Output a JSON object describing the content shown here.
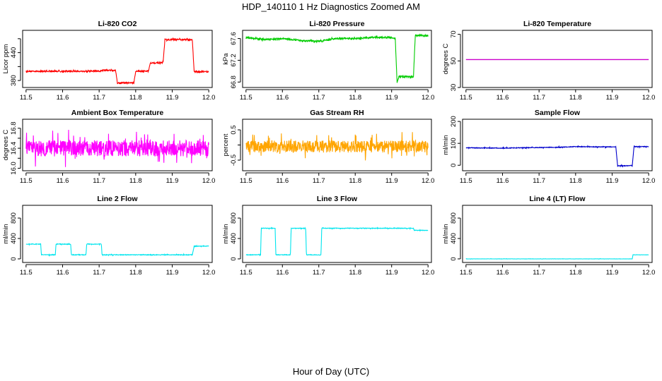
{
  "figure": {
    "title": "HDP_140110  1 Hz Diagnostics Zoomed AM",
    "xlabel": "Hour of Day (UTC)"
  },
  "chart_data": [
    {
      "id": "co2",
      "type": "line",
      "title": "Li-820 CO2",
      "ylabel": "Licor ppm",
      "color": "#ff0000",
      "xlim": [
        11.5,
        12.0
      ],
      "ylim": [
        365,
        488
      ],
      "xticks": [
        "11.5",
        "11.6",
        "11.7",
        "11.8",
        "11.9",
        "12.0"
      ],
      "yticks": [
        380,
        410,
        440,
        470
      ],
      "ytick_labels": [
        "380",
        "",
        "440",
        ""
      ],
      "series": [
        {
          "x": [
            11.5,
            11.705,
            11.71,
            11.745,
            11.75,
            11.795,
            11.8,
            11.835,
            11.84,
            11.875,
            11.88,
            11.955,
            11.96,
            12.0
          ],
          "y": [
            400,
            400,
            402,
            402,
            375,
            375,
            400,
            400,
            418,
            418,
            468,
            468,
            399,
            399
          ],
          "noise": 1.5
        }
      ]
    },
    {
      "id": "pressure",
      "type": "line",
      "title": "Li-820 Pressure",
      "ylabel": "kPa",
      "color": "#00cc00",
      "xlim": [
        11.5,
        12.0
      ],
      "ylim": [
        66.7,
        67.75
      ],
      "xticks": [
        "11.5",
        "11.6",
        "11.7",
        "11.8",
        "11.9",
        "12.0"
      ],
      "yticks": [
        66.8,
        67.2,
        67.6
      ],
      "ytick_labels": [
        "66.8",
        "67.2",
        "67.6"
      ],
      "series": [
        {
          "x": [
            11.5,
            11.55,
            11.6,
            11.65,
            11.7,
            11.75,
            11.8,
            11.85,
            11.9,
            11.91,
            11.915,
            11.92,
            11.96,
            11.965,
            12.0
          ],
          "y": [
            67.62,
            67.58,
            67.6,
            67.56,
            67.55,
            67.6,
            67.6,
            67.62,
            67.62,
            67.6,
            66.78,
            66.9,
            66.9,
            67.66,
            67.65
          ],
          "noise": 0.015
        }
      ]
    },
    {
      "id": "licor_temp",
      "type": "line",
      "title": "Li-820 Temperature",
      "ylabel": "degrees C",
      "color": "#cc00cc",
      "xlim": [
        11.5,
        12.0
      ],
      "ylim": [
        30,
        73
      ],
      "xticks": [
        "11.5",
        "11.6",
        "11.7",
        "11.8",
        "11.9",
        "12.0"
      ],
      "yticks": [
        30,
        50,
        70
      ],
      "ytick_labels": [
        "30",
        "50",
        "70"
      ],
      "series": [
        {
          "x": [
            11.5,
            12.0
          ],
          "y": [
            51,
            51
          ],
          "noise": 0
        }
      ]
    },
    {
      "id": "box_temp",
      "type": "line",
      "title": "Ambient Box Temperature",
      "ylabel": "degrees C",
      "color": "#ff00ff",
      "xlim": [
        11.5,
        12.0
      ],
      "ylim": [
        15.95,
        16.98
      ],
      "xticks": [
        "11.5",
        "11.6",
        "11.7",
        "11.8",
        "11.9",
        "12.0"
      ],
      "yticks": [
        16.0,
        16.2,
        16.4,
        16.6,
        16.8
      ],
      "ytick_labels": [
        "16.0",
        "",
        "16.4",
        "",
        "16.8"
      ],
      "series": [
        {
          "x": [
            11.5,
            12.0
          ],
          "y": [
            16.4,
            16.4
          ],
          "noise": 0.16
        }
      ]
    },
    {
      "id": "rh",
      "type": "line",
      "title": "Gas Stream RH",
      "ylabel": "percent",
      "color": "#ffa500",
      "xlim": [
        11.5,
        12.0
      ],
      "ylim": [
        -0.85,
        0.85
      ],
      "xticks": [
        "11.5",
        "11.6",
        "11.7",
        "11.8",
        "11.9",
        "12.0"
      ],
      "yticks": [
        -0.5,
        0.0,
        0.5
      ],
      "ytick_labels": [
        "-0.5",
        "",
        "0.5"
      ],
      "series": [
        {
          "x": [
            11.5,
            12.0
          ],
          "y": [
            -0.05,
            -0.05
          ],
          "noise": 0.2
        }
      ]
    },
    {
      "id": "sample_flow",
      "type": "line",
      "title": "Sample Flow",
      "ylabel": "ml/min",
      "color": "#0000cc",
      "xlim": [
        11.5,
        12.0
      ],
      "ylim": [
        -25,
        210
      ],
      "xticks": [
        "11.5",
        "11.6",
        "11.7",
        "11.8",
        "11.9",
        "12.0"
      ],
      "yticks": [
        0,
        100,
        200
      ],
      "ytick_labels": [
        "0",
        "100",
        "200"
      ],
      "series": [
        {
          "x": [
            11.5,
            11.6,
            11.65,
            11.75,
            11.8,
            11.85,
            11.91,
            11.915,
            11.955,
            11.96,
            12.0
          ],
          "y": [
            80,
            78,
            80,
            82,
            85,
            84,
            84,
            -2,
            -2,
            85,
            85
          ],
          "noise": 1.5
        }
      ]
    },
    {
      "id": "line2",
      "type": "line",
      "title": "Line 2 Flow",
      "ylabel": "ml/min",
      "color": "#00e5ee",
      "xlim": [
        11.5,
        12.0
      ],
      "ylim": [
        -70,
        1050
      ],
      "xticks": [
        "11.5",
        "11.6",
        "11.7",
        "11.8",
        "11.9",
        "12.0"
      ],
      "yticks": [
        0,
        400,
        800
      ],
      "ytick_labels": [
        "0",
        "400",
        "800"
      ],
      "series": [
        {
          "x": [
            11.5,
            11.54,
            11.542,
            11.58,
            11.582,
            11.622,
            11.624,
            11.664,
            11.666,
            11.706,
            11.708,
            11.955,
            11.96,
            12.0
          ],
          "y": [
            290,
            290,
            80,
            80,
            290,
            290,
            80,
            80,
            290,
            290,
            80,
            80,
            250,
            250
          ],
          "noise": 6
        }
      ]
    },
    {
      "id": "line3",
      "type": "line",
      "title": "Line 3 Flow",
      "ylabel": "ml/min",
      "color": "#00e5ee",
      "xlim": [
        11.5,
        12.0
      ],
      "ylim": [
        -70,
        1050
      ],
      "xticks": [
        "11.5",
        "11.6",
        "11.7",
        "11.8",
        "11.9",
        "12.0"
      ],
      "yticks": [
        0,
        400,
        800
      ],
      "ytick_labels": [
        "0",
        "400",
        "800"
      ],
      "series": [
        {
          "x": [
            11.5,
            11.54,
            11.542,
            11.58,
            11.582,
            11.622,
            11.624,
            11.664,
            11.666,
            11.706,
            11.708,
            11.96,
            11.962,
            12.0
          ],
          "y": [
            80,
            80,
            600,
            600,
            80,
            80,
            600,
            600,
            80,
            80,
            600,
            600,
            560,
            560
          ],
          "noise": 6
        }
      ]
    },
    {
      "id": "line4",
      "type": "line",
      "title": "Line 4 (LT) Flow",
      "ylabel": "ml/min",
      "color": "#00e5ee",
      "xlim": [
        11.5,
        12.0
      ],
      "ylim": [
        -70,
        1050
      ],
      "xticks": [
        "11.5",
        "11.6",
        "11.7",
        "11.8",
        "11.9",
        "12.0"
      ],
      "yticks": [
        0,
        400,
        800
      ],
      "ytick_labels": [
        "0",
        "400",
        "800"
      ],
      "series": [
        {
          "x": [
            11.5,
            11.955,
            11.957,
            12.0
          ],
          "y": [
            0,
            0,
            80,
            80
          ],
          "noise": 2
        }
      ]
    }
  ]
}
